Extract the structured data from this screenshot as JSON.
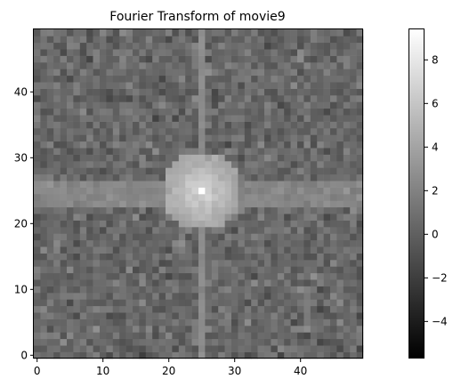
{
  "chart_data": {
    "type": "heatmap",
    "title": "Fourier Transform of movie9",
    "xlabel": "",
    "ylabel": "",
    "colormap": "gray",
    "grid": false,
    "grid_size": [
      50,
      50
    ],
    "xlim": [
      -0.5,
      49.5
    ],
    "ylim": [
      -0.5,
      49.5
    ],
    "x_ticks": [
      0,
      10,
      20,
      30,
      40
    ],
    "y_ticks": [
      0,
      10,
      20,
      30,
      40
    ],
    "colorbar": {
      "range": [
        -5.7,
        9.4
      ],
      "ticks": [
        -4,
        -2,
        0,
        2,
        4,
        6,
        8
      ],
      "tick_labels": [
        "−4",
        "−2",
        "0",
        "2",
        "4",
        "6",
        "8"
      ]
    },
    "features": {
      "center": [
        25,
        25
      ],
      "peak_value": 9.4,
      "background_level": 0.5,
      "background_spread": 1.2,
      "vertical_line_value": 2.6,
      "horizontal_band_rows": [
        23,
        26
      ],
      "horizontal_band_value": 2.3
    }
  }
}
